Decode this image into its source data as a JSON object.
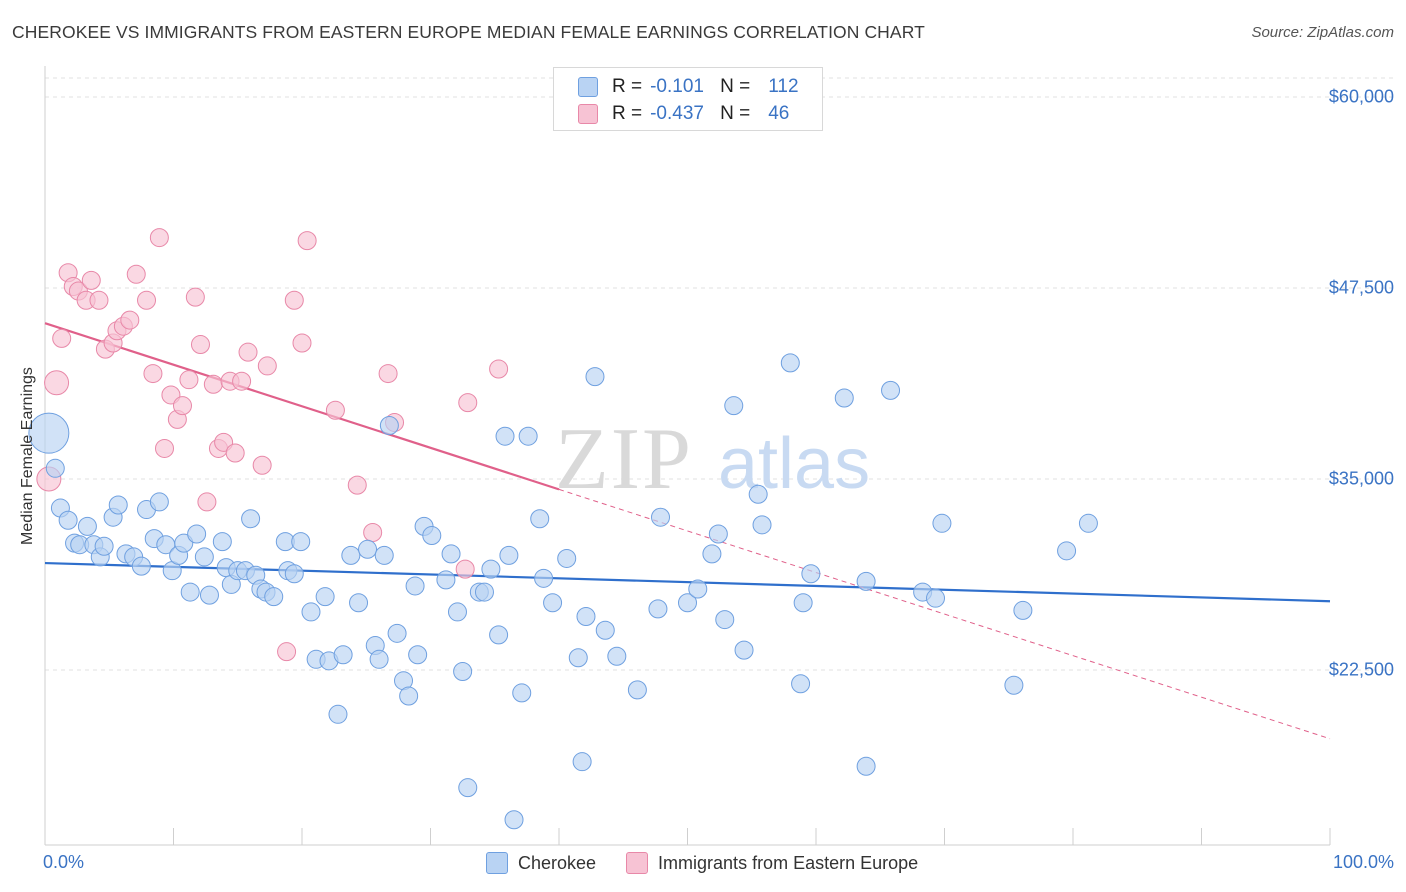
{
  "title": "CHEROKEE VS IMMIGRANTS FROM EASTERN EUROPE MEDIAN FEMALE EARNINGS CORRELATION CHART",
  "source": "Source: ZipAtlas.com",
  "watermark": "ZIPatlas",
  "legend_top": {
    "rows": [
      {
        "r_label": "R =",
        "r_value": "-0.101",
        "n_label": "N =",
        "n_value": "112"
      },
      {
        "r_label": "R =",
        "r_value": "-0.437",
        "n_label": "N =",
        "n_value": "46"
      }
    ]
  },
  "legend_bottom": {
    "series1": "Cherokee",
    "series2": "Immigrants from Eastern Europe"
  },
  "y_ticks": [
    "$60,000",
    "$47,500",
    "$35,000",
    "$22,500"
  ],
  "x_ticks": [
    "0.0%",
    "100.0%"
  ],
  "colors": {
    "blue": "#6fa0e0",
    "blue_fill": "#b9d3f3",
    "pink": "#e888a8",
    "pink_fill": "#f7c3d4",
    "blue_line": "#2f6fcc",
    "pink_line": "#e0608a",
    "accent_text": "#3a73c4"
  },
  "chart_data": {
    "type": "scatter",
    "xlabel": "",
    "ylabel": "Median Female Earnings",
    "xlim": [
      0,
      100
    ],
    "ylim": [
      10000,
      62500
    ],
    "grid": true,
    "series": [
      {
        "name": "Cherokee",
        "trend": {
          "x": [
            0,
            100
          ],
          "y": [
            29500,
            27000
          ]
        },
        "points": [
          [
            0.3,
            38000
          ],
          [
            0.8,
            35700
          ],
          [
            1.2,
            33100
          ],
          [
            1.8,
            32300
          ],
          [
            2.3,
            30800
          ],
          [
            2.7,
            30700
          ],
          [
            3.3,
            31900
          ],
          [
            3.8,
            30700
          ],
          [
            4.3,
            29900
          ],
          [
            4.6,
            30600
          ],
          [
            5.3,
            32500
          ],
          [
            5.7,
            33300
          ],
          [
            6.3,
            30100
          ],
          [
            6.9,
            29900
          ],
          [
            7.5,
            29300
          ],
          [
            7.9,
            33000
          ],
          [
            8.5,
            31100
          ],
          [
            8.9,
            33500
          ],
          [
            9.4,
            30700
          ],
          [
            9.9,
            29000
          ],
          [
            10.4,
            30000
          ],
          [
            10.8,
            30800
          ],
          [
            11.3,
            27600
          ],
          [
            11.8,
            31400
          ],
          [
            12.4,
            29900
          ],
          [
            12.8,
            27400
          ],
          [
            13.8,
            30900
          ],
          [
            14.1,
            29200
          ],
          [
            14.5,
            28100
          ],
          [
            15.0,
            29000
          ],
          [
            15.6,
            29000
          ],
          [
            16.0,
            32400
          ],
          [
            16.4,
            28700
          ],
          [
            16.8,
            27800
          ],
          [
            17.2,
            27600
          ],
          [
            17.8,
            27300
          ],
          [
            18.7,
            30900
          ],
          [
            18.9,
            29000
          ],
          [
            19.4,
            28800
          ],
          [
            19.9,
            30900
          ],
          [
            20.7,
            26300
          ],
          [
            21.1,
            23200
          ],
          [
            21.8,
            27300
          ],
          [
            22.1,
            23100
          ],
          [
            22.8,
            19600
          ],
          [
            23.2,
            23500
          ],
          [
            23.8,
            30000
          ],
          [
            24.4,
            26900
          ],
          [
            25.1,
            30400
          ],
          [
            25.7,
            24100
          ],
          [
            26.0,
            23200
          ],
          [
            26.4,
            30000
          ],
          [
            26.8,
            38500
          ],
          [
            27.4,
            24900
          ],
          [
            27.9,
            21800
          ],
          [
            28.3,
            20800
          ],
          [
            28.8,
            28000
          ],
          [
            29.0,
            23500
          ],
          [
            29.5,
            31900
          ],
          [
            30.1,
            31300
          ],
          [
            31.2,
            28400
          ],
          [
            31.6,
            30100
          ],
          [
            32.1,
            26300
          ],
          [
            32.5,
            22400
          ],
          [
            32.9,
            14800
          ],
          [
            33.8,
            27600
          ],
          [
            34.2,
            27600
          ],
          [
            34.7,
            29100
          ],
          [
            35.3,
            24800
          ],
          [
            35.8,
            37800
          ],
          [
            36.1,
            30000
          ],
          [
            36.5,
            12700
          ],
          [
            37.1,
            21000
          ],
          [
            37.6,
            37800
          ],
          [
            38.5,
            32400
          ],
          [
            38.8,
            28500
          ],
          [
            39.5,
            26900
          ],
          [
            40.6,
            29800
          ],
          [
            41.5,
            23300
          ],
          [
            41.8,
            16500
          ],
          [
            42.1,
            26000
          ],
          [
            42.8,
            41700
          ],
          [
            43.6,
            25100
          ],
          [
            44.5,
            23400
          ],
          [
            46.1,
            21200
          ],
          [
            47.7,
            26500
          ],
          [
            47.9,
            32500
          ],
          [
            50.0,
            26900
          ],
          [
            50.8,
            27800
          ],
          [
            51.9,
            30100
          ],
          [
            52.4,
            31400
          ],
          [
            52.9,
            25800
          ],
          [
            53.6,
            39800
          ],
          [
            54.4,
            23800
          ],
          [
            55.5,
            34000
          ],
          [
            55.8,
            32000
          ],
          [
            58.0,
            42600
          ],
          [
            58.8,
            21600
          ],
          [
            59.0,
            26900
          ],
          [
            59.6,
            28800
          ],
          [
            62.2,
            40300
          ],
          [
            63.9,
            16200
          ],
          [
            63.9,
            28300
          ],
          [
            65.8,
            40800
          ],
          [
            68.3,
            27600
          ],
          [
            69.3,
            27200
          ],
          [
            69.8,
            32100
          ],
          [
            75.4,
            21500
          ],
          [
            76.1,
            26400
          ],
          [
            79.5,
            30300
          ],
          [
            81.2,
            32100
          ]
        ],
        "point_sizes": {
          "0.3,38000": "large"
        }
      },
      {
        "name": "Immigrants from Eastern Europe",
        "trend": {
          "x": [
            0,
            100
          ],
          "y": [
            45200,
            18000
          ],
          "solid_until_x": 40
        },
        "points": [
          [
            0.3,
            35000
          ],
          [
            0.9,
            41300
          ],
          [
            1.3,
            44200
          ],
          [
            1.8,
            48500
          ],
          [
            2.2,
            47600
          ],
          [
            2.6,
            47300
          ],
          [
            3.2,
            46700
          ],
          [
            3.6,
            48000
          ],
          [
            4.2,
            46700
          ],
          [
            4.7,
            43500
          ],
          [
            5.3,
            43900
          ],
          [
            5.6,
            44700
          ],
          [
            6.1,
            45000
          ],
          [
            6.6,
            45400
          ],
          [
            7.1,
            48400
          ],
          [
            7.9,
            46700
          ],
          [
            8.4,
            41900
          ],
          [
            8.9,
            50800
          ],
          [
            9.3,
            37000
          ],
          [
            9.8,
            40500
          ],
          [
            10.3,
            38900
          ],
          [
            10.7,
            39800
          ],
          [
            11.2,
            41500
          ],
          [
            11.7,
            46900
          ],
          [
            12.1,
            43800
          ],
          [
            12.6,
            33500
          ],
          [
            13.1,
            41200
          ],
          [
            13.5,
            37000
          ],
          [
            13.9,
            37400
          ],
          [
            14.4,
            41400
          ],
          [
            14.8,
            36700
          ],
          [
            15.3,
            41400
          ],
          [
            15.8,
            43300
          ],
          [
            16.9,
            35900
          ],
          [
            17.3,
            42400
          ],
          [
            18.8,
            23700
          ],
          [
            19.4,
            46700
          ],
          [
            20.0,
            43900
          ],
          [
            20.4,
            50600
          ],
          [
            22.6,
            39500
          ],
          [
            24.3,
            34600
          ],
          [
            25.5,
            31500
          ],
          [
            26.7,
            41900
          ],
          [
            27.2,
            38700
          ],
          [
            32.7,
            29100
          ],
          [
            32.9,
            40000
          ],
          [
            35.3,
            42200
          ]
        ]
      }
    ]
  }
}
